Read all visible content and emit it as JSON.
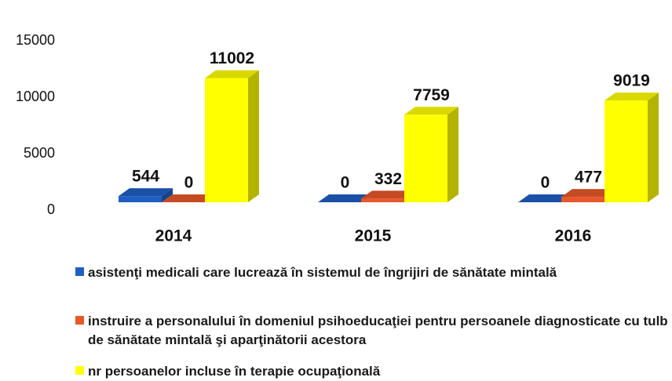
{
  "chart_data": {
    "type": "bar3d",
    "categories": [
      "2014",
      "2015",
      "2016"
    ],
    "series": [
      {
        "name": "asistenţi medicali care lucrează în sistemul de îngrijiri de sănătate mintală",
        "color": "#1f5fc4",
        "values": [
          544,
          0,
          0
        ]
      },
      {
        "name": "instruire a personalului în domeniul psihoeducaţiei pentru persoanele diagnosticate cu tulb de sănătate mintală şi aparţinătorii acestora",
        "color": "#e8582a",
        "values": [
          0,
          332,
          477
        ]
      },
      {
        "name": "nr persoanelor incluse în terapie ocupaţională",
        "color": "#ffff00",
        "values": [
          11002,
          7759,
          9019
        ]
      }
    ],
    "ylim": [
      0,
      15000
    ],
    "yticks": [
      0,
      5000,
      10000,
      15000
    ],
    "grid": false,
    "legend": "bottom"
  }
}
